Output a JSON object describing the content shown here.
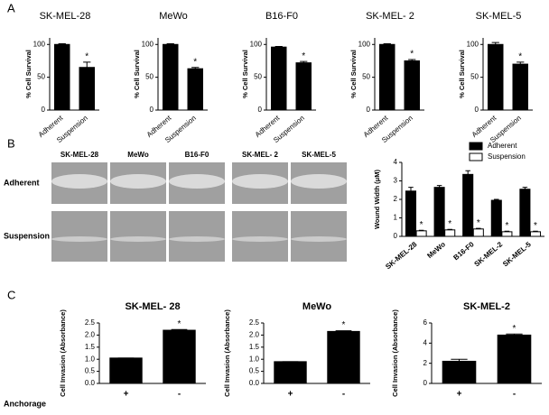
{
  "panel_labels": [
    "A",
    "B",
    "C"
  ],
  "images": {
    "columns": [
      "SK-MEL-28",
      "MeWo",
      "B16-F0",
      "SK-MEL- 2",
      "SK-MEL-5"
    ],
    "rows": [
      "Adherent",
      "Suspension"
    ]
  },
  "row_label": "Anchorage",
  "chart_data": [
    {
      "type": "bar",
      "title": "SK-MEL-28",
      "ylabel": "% Cell Survival",
      "categories": [
        "Adherent",
        "Suspension"
      ],
      "values": [
        100,
        65
      ],
      "errors": [
        1,
        8
      ],
      "annotations": [
        null,
        "*"
      ],
      "color": "#000000",
      "ylim": [
        0,
        110
      ],
      "yticks": [
        0,
        50,
        100
      ]
    },
    {
      "type": "bar",
      "title": "MeWo",
      "ylabel": "% Cell Survival",
      "categories": [
        "Adherent",
        "Suspension"
      ],
      "values": [
        100,
        63
      ],
      "errors": [
        1,
        2
      ],
      "annotations": [
        null,
        "*"
      ],
      "color": "#000000",
      "ylim": [
        0,
        110
      ],
      "yticks": [
        0,
        50,
        100
      ]
    },
    {
      "type": "bar",
      "title": "B16-F0",
      "ylabel": "% Cell Survival",
      "categories": [
        "Adherent",
        "Suspension"
      ],
      "values": [
        96,
        72
      ],
      "errors": [
        1,
        2
      ],
      "annotations": [
        null,
        "*"
      ],
      "color": "#000000",
      "ylim": [
        0,
        110
      ],
      "yticks": [
        0,
        50,
        100
      ]
    },
    {
      "type": "bar",
      "title": "SK-MEL- 2",
      "ylabel": "% Cell Survival",
      "categories": [
        "Adherent",
        "Suspension"
      ],
      "values": [
        100,
        75
      ],
      "errors": [
        1,
        2
      ],
      "annotations": [
        null,
        "*"
      ],
      "color": "#000000",
      "ylim": [
        0,
        110
      ],
      "yticks": [
        0,
        50,
        100
      ]
    },
    {
      "type": "bar",
      "title": "SK-MEL-5",
      "ylabel": "% Cell Survival",
      "categories": [
        "Adherent",
        "Suspension"
      ],
      "values": [
        100,
        70
      ],
      "errors": [
        3,
        3
      ],
      "annotations": [
        null,
        "*"
      ],
      "color": "#000000",
      "ylim": [
        0,
        110
      ],
      "yticks": [
        0,
        50,
        100
      ]
    },
    {
      "type": "grouped-bar",
      "ylabel": "Wound Width (μM)",
      "categories": [
        "SK-MEL-28",
        "MeWo",
        "B16-F0",
        "SK-MEL-2",
        "SK-MEL-5"
      ],
      "series": [
        {
          "name": "Adherent",
          "color": "#000000",
          "values": [
            2.45,
            2.65,
            3.35,
            1.95,
            2.55
          ],
          "errors": [
            0.2,
            0.1,
            0.2,
            0.05,
            0.1
          ]
        },
        {
          "name": "Suspension",
          "color": "#ffffff",
          "values": [
            0.3,
            0.35,
            0.4,
            0.25,
            0.25
          ],
          "errors": [
            0.03,
            0.03,
            0.03,
            0.03,
            0.03
          ],
          "annotations": [
            "*",
            "*",
            "*",
            "*",
            "*"
          ]
        }
      ],
      "legend": "upper right",
      "ylim": [
        0,
        4
      ],
      "yticks": [
        0,
        1,
        2,
        3,
        4
      ]
    },
    {
      "type": "bar",
      "title": "SK-MEL- 28",
      "ylabel": "Cell Invasion (Absorbance)",
      "categories": [
        "+",
        "-"
      ],
      "values": [
        1.05,
        2.2
      ],
      "errors": [
        0,
        0.03
      ],
      "annotations": [
        null,
        "*"
      ],
      "color": "#000000",
      "ylim": [
        0,
        2.5
      ],
      "yticks": [
        {
          "value": 0,
          "label": "0.0"
        },
        0.5,
        {
          "value": 1,
          "label": "1.0"
        },
        1.5,
        {
          "value": 2,
          "label": "2.0"
        },
        2.5
      ]
    },
    {
      "type": "bar",
      "title": "MeWo",
      "ylabel": "Cell Invasion (Absorbance)",
      "categories": [
        "+",
        "-"
      ],
      "values": [
        0.9,
        2.15
      ],
      "errors": [
        0,
        0.03
      ],
      "annotations": [
        null,
        "*"
      ],
      "color": "#000000",
      "ylim": [
        0,
        2.5
      ],
      "yticks": [
        {
          "value": 0,
          "label": "0.0"
        },
        0.5,
        {
          "value": 1,
          "label": "1.0"
        },
        1.5,
        {
          "value": 2,
          "label": "2.0"
        },
        2.5
      ]
    },
    {
      "type": "bar",
      "title": "SK-MEL-2",
      "ylabel": "Cell Invasion (Absorbance)",
      "categories": [
        "+",
        "-"
      ],
      "values": [
        2.2,
        4.8
      ],
      "errors": [
        0.2,
        0.1
      ],
      "annotations": [
        null,
        "*"
      ],
      "color": "#000000",
      "ylim": [
        0,
        6
      ],
      "yticks": [
        0,
        2,
        4,
        6
      ]
    }
  ]
}
